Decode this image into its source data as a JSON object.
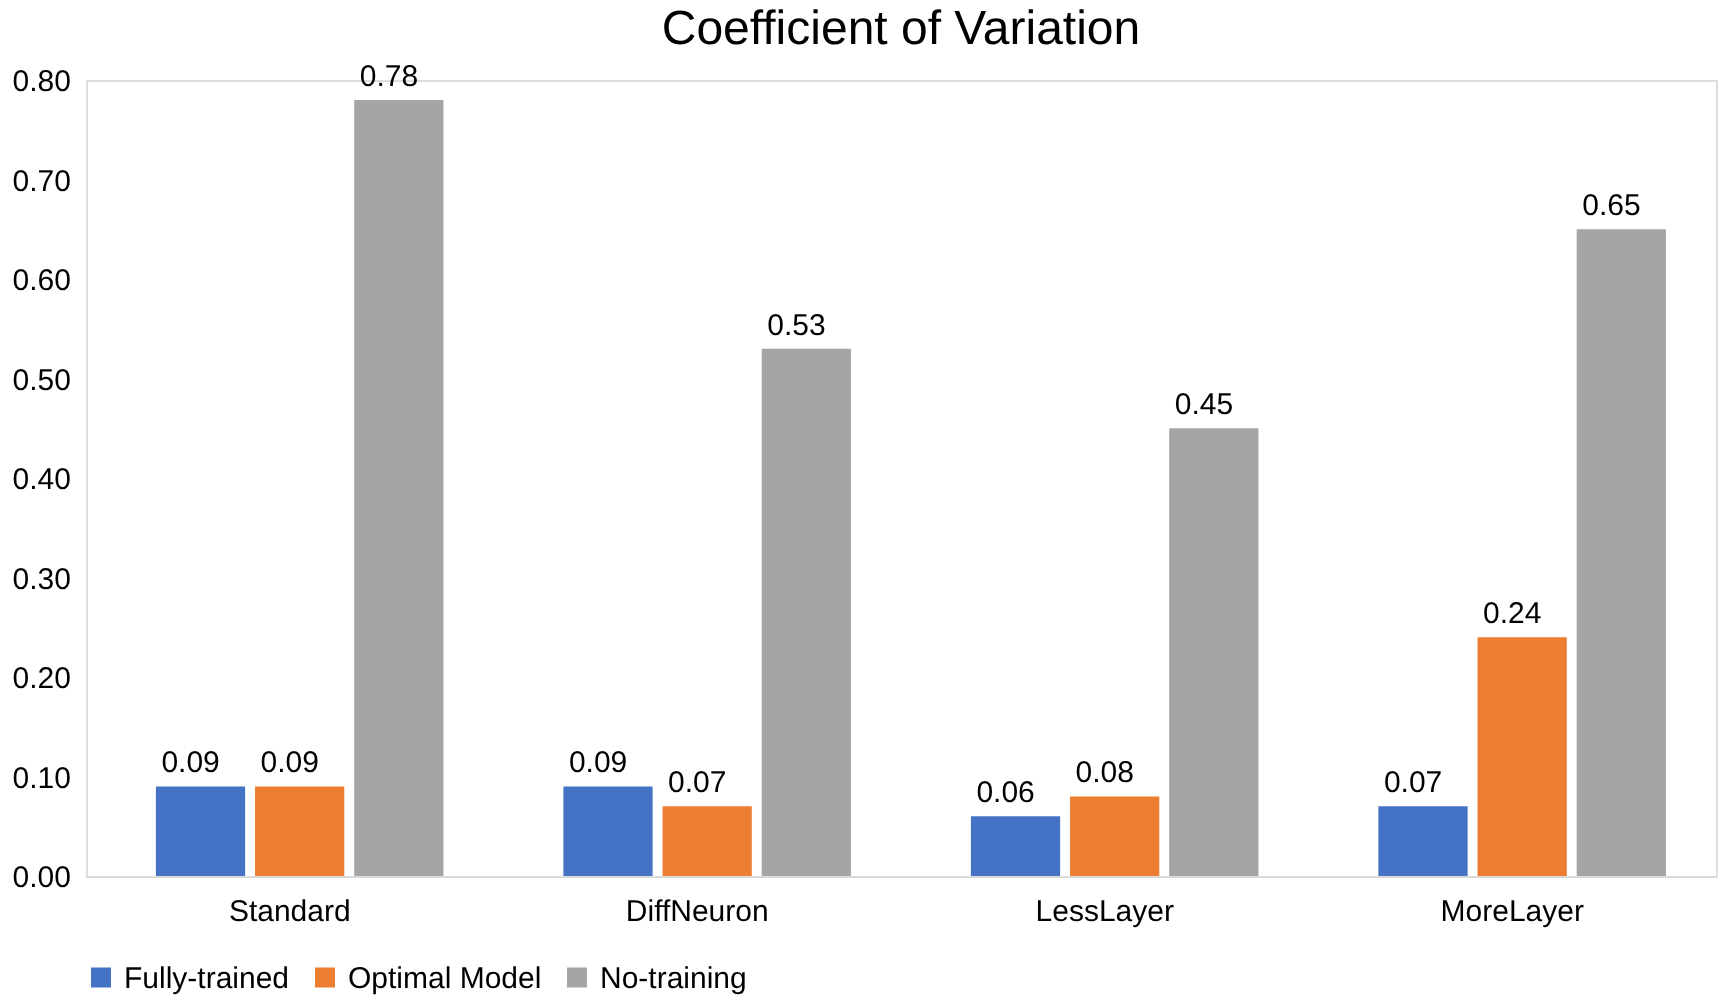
{
  "chart_data": {
    "type": "bar",
    "title": "Coefficient of Variation",
    "categories": [
      "Standard",
      "DiffNeuron",
      "LessLayer",
      "MoreLayer"
    ],
    "series": [
      {
        "name": "Fully-trained",
        "color": "#4472c4",
        "values": [
          0.09,
          0.09,
          0.06,
          0.07
        ]
      },
      {
        "name": "Optimal Model",
        "color": "#ed7d31",
        "values": [
          0.09,
          0.07,
          0.08,
          0.24
        ]
      },
      {
        "name": "No-training",
        "color": "#a5a5a5",
        "values": [
          0.78,
          0.53,
          0.45,
          0.65
        ]
      }
    ],
    "ylim": [
      0,
      0.8
    ],
    "yticks": [
      {
        "value": 0,
        "label": "0.00"
      },
      {
        "value": 0.1,
        "label": "0.10"
      },
      {
        "value": 0.2,
        "label": "0.20"
      },
      {
        "value": 0.3,
        "label": "0.30"
      },
      {
        "value": 0.4,
        "label": "0.40"
      },
      {
        "value": 0.5,
        "label": "0.50"
      },
      {
        "value": 0.6,
        "label": "0.60"
      },
      {
        "value": 0.7,
        "label": "0.70"
      },
      {
        "value": 0.8,
        "label": "0.80"
      }
    ],
    "grid": false,
    "legend": "bottom",
    "data_labels": true
  }
}
